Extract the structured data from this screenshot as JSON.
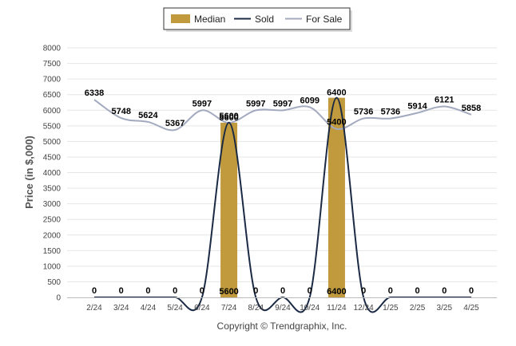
{
  "chart_data": {
    "type": "bar",
    "title": "",
    "xlabel": "",
    "ylabel": "Price (in $,000)",
    "ylim": [
      0,
      8000
    ],
    "yticks": [
      0,
      500,
      1000,
      1500,
      2000,
      2500,
      3000,
      3500,
      4000,
      4500,
      5000,
      5500,
      6000,
      6500,
      7000,
      7500,
      8000
    ],
    "grid": true,
    "legend_position": "top-center",
    "categories": [
      "2/24",
      "3/24",
      "4/24",
      "5/24",
      "6/24",
      "7/24",
      "8/24",
      "9/24",
      "10/24",
      "11/24",
      "12/24",
      "1/25",
      "2/25",
      "3/25",
      "4/25"
    ],
    "series": [
      {
        "name": "Median",
        "kind": "bar",
        "color": "#C09A3C",
        "values": [
          0,
          0,
          0,
          0,
          0,
          5600,
          0,
          0,
          0,
          6400,
          0,
          0,
          0,
          0,
          0
        ]
      },
      {
        "name": "Sold",
        "kind": "line",
        "color": "#1B2A44",
        "values": [
          0,
          0,
          0,
          0,
          0,
          5600,
          0,
          0,
          0,
          6400,
          0,
          0,
          0,
          0,
          0
        ],
        "labels": [
          "0",
          "0",
          "0",
          "0",
          "0",
          "5600",
          "0",
          "0",
          "0",
          "6400",
          "0",
          "0",
          "0",
          "0",
          "0"
        ]
      },
      {
        "name": "For Sale",
        "kind": "line",
        "color": "#A3AABF",
        "values": [
          6338,
          5748,
          5624,
          5367,
          5997,
          5600,
          5997,
          5997,
          6099,
          5400,
          5736,
          5736,
          5914,
          6121,
          5858
        ],
        "labels": [
          "6338",
          "5748",
          "5624",
          "5367",
          "5997",
          "5600",
          "5997",
          "5997",
          "6099",
          "5400",
          "5736",
          "5736",
          "5914",
          "6121",
          "5858"
        ]
      }
    ],
    "footer": "Copyright © Trendgraphix, Inc."
  }
}
